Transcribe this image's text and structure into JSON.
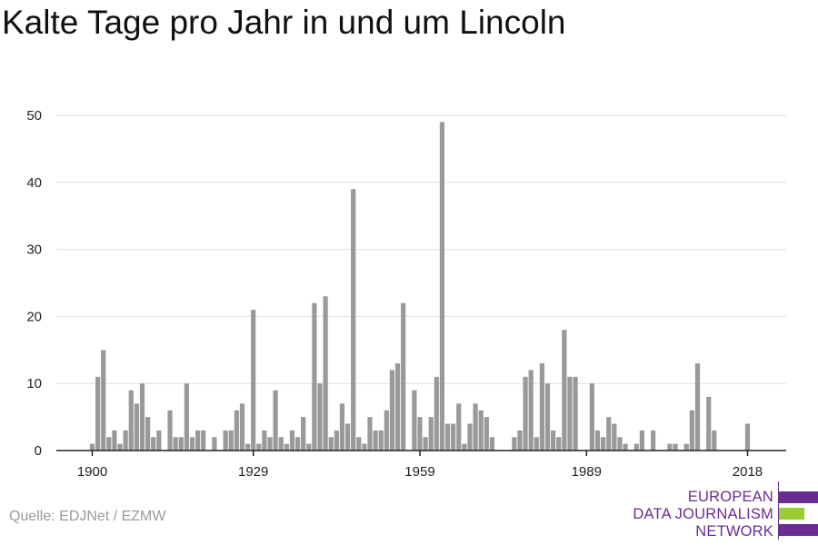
{
  "title": "Kalte Tage pro Jahr in und um Lincoln",
  "source": "Quelle: EDJNet / EZMW",
  "logo": {
    "lines": [
      "EUROPEAN",
      "DATA JOURNALISM",
      "NETWORK"
    ],
    "colors": {
      "purple": "#6b2c91",
      "green": "#9acd32"
    }
  },
  "chart_data": {
    "type": "bar",
    "title": "Kalte Tage pro Jahr in und um Lincoln",
    "xlabel": "",
    "ylabel": "",
    "ylim": [
      0,
      50
    ],
    "yticks": [
      0,
      10,
      20,
      30,
      40,
      50
    ],
    "xticks": [
      1900,
      1929,
      1959,
      1989,
      2018
    ],
    "x_start": 1900,
    "bar_color": "#999999",
    "grid": true,
    "values": [
      1,
      11,
      15,
      2,
      3,
      1,
      3,
      9,
      7,
      10,
      5,
      2,
      3,
      0,
      6,
      2,
      2,
      10,
      2,
      3,
      3,
      0,
      2,
      0,
      3,
      3,
      6,
      7,
      1,
      21,
      1,
      3,
      2,
      9,
      2,
      1,
      3,
      2,
      5,
      1,
      22,
      10,
      23,
      2,
      3,
      7,
      4,
      39,
      2,
      1,
      5,
      3,
      3,
      6,
      12,
      13,
      22,
      0,
      9,
      5,
      2,
      5,
      11,
      49,
      4,
      4,
      7,
      1,
      4,
      7,
      6,
      5,
      2,
      0,
      0,
      0,
      2,
      3,
      11,
      12,
      2,
      13,
      10,
      3,
      2,
      18,
      11,
      11,
      0,
      0,
      10,
      3,
      2,
      5,
      4,
      2,
      1,
      0,
      1,
      3,
      0,
      3,
      0,
      0,
      1,
      1,
      0,
      1,
      6,
      13,
      0,
      8,
      3,
      0,
      0,
      0,
      0,
      0,
      4
    ]
  }
}
